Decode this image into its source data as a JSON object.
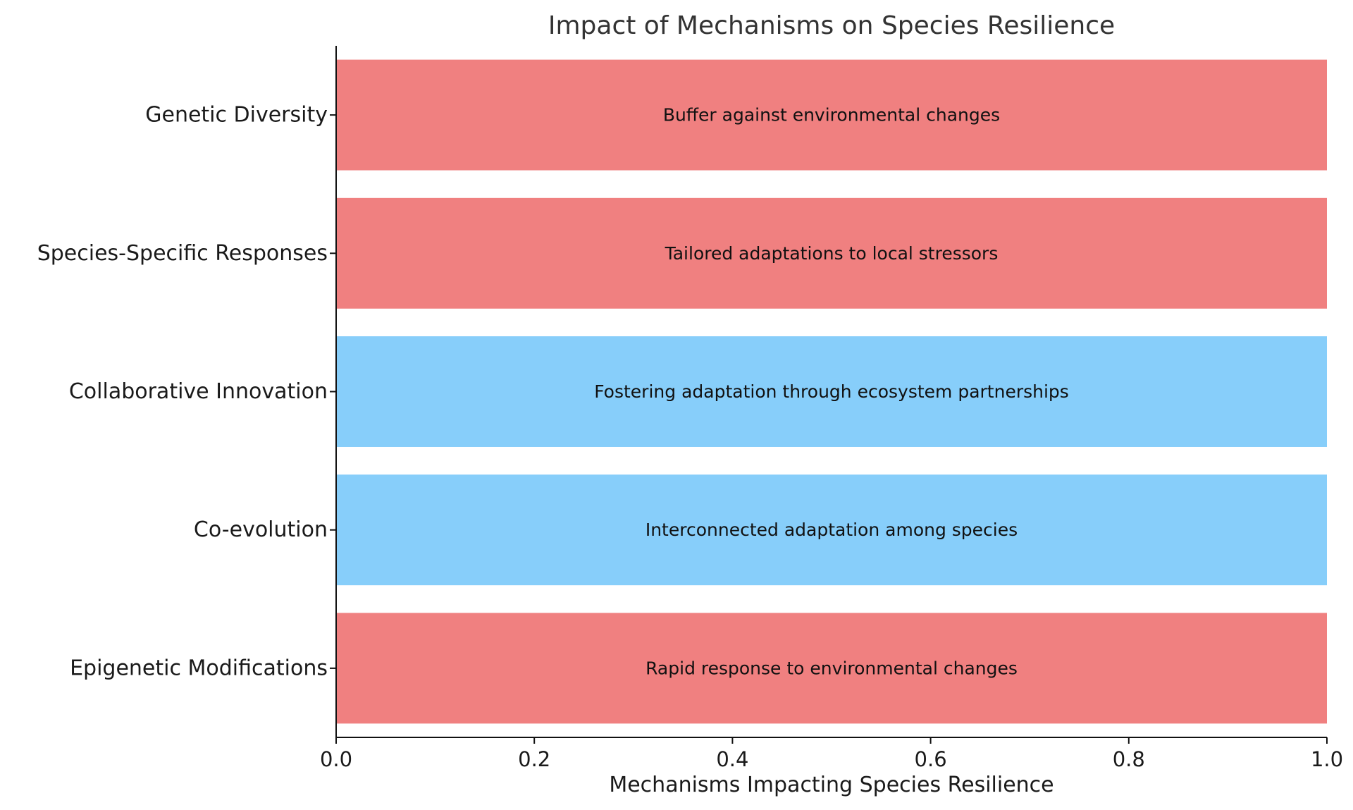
{
  "chart_data": {
    "type": "bar",
    "orientation": "horizontal",
    "title": "Impact of Mechanisms on Species Resilience",
    "xlabel": "Mechanisms Impacting Species Resilience",
    "ylabel": "",
    "xlim": [
      0,
      1
    ],
    "x_ticks": [
      "0.0",
      "0.2",
      "0.4",
      "0.6",
      "0.8",
      "1.0"
    ],
    "x_tick_values": [
      0,
      0.2,
      0.4,
      0.6,
      0.8,
      1.0
    ],
    "grid": false,
    "categories": [
      "Genetic Diversity",
      "Species-Specific Responses",
      "Collaborative Innovation",
      "Co-evolution",
      "Epigenetic Modifications"
    ],
    "values": [
      1,
      1,
      1,
      1,
      1
    ],
    "bar_labels": [
      "Buffer against environmental changes",
      "Tailored adaptations to local stressors",
      "Fostering adaptation through ecosystem partnerships",
      "Interconnected adaptation among species",
      "Rapid response to environmental changes"
    ],
    "bar_colors": [
      "#f08080",
      "#f08080",
      "#87cefa",
      "#87cefa",
      "#f08080"
    ]
  }
}
